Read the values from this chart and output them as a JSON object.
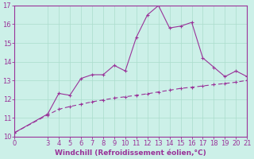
{
  "xlabel": "Windchill (Refroidissement éolien,°C)",
  "x_data": [
    0,
    3,
    4,
    5,
    6,
    7,
    8,
    9,
    10,
    11,
    12,
    13,
    14,
    15,
    16,
    17,
    18,
    19,
    20,
    21
  ],
  "line1_y": [
    10.2,
    11.2,
    12.3,
    12.2,
    13.1,
    13.3,
    13.3,
    13.8,
    13.5,
    15.3,
    16.5,
    17.0,
    15.8,
    15.9,
    16.1,
    14.2,
    13.7,
    13.2,
    13.5,
    13.2
  ],
  "line2_y": [
    10.2,
    11.15,
    11.45,
    11.6,
    11.72,
    11.85,
    11.95,
    12.05,
    12.12,
    12.2,
    12.28,
    12.38,
    12.47,
    12.57,
    12.63,
    12.7,
    12.77,
    12.83,
    12.9,
    13.0
  ],
  "line_color": "#993399",
  "bg_color": "#ccf0e8",
  "grid_color": "#aaddcc",
  "axis_color": "#993399",
  "text_color": "#993399",
  "ylim": [
    10,
    17
  ],
  "xlim": [
    0,
    21
  ],
  "yticks": [
    10,
    11,
    12,
    13,
    14,
    15,
    16,
    17
  ],
  "xticks": [
    0,
    3,
    4,
    5,
    6,
    7,
    8,
    9,
    10,
    11,
    12,
    13,
    14,
    15,
    16,
    17,
    18,
    19,
    20,
    21
  ],
  "tick_fontsize": 6.0,
  "xlabel_fontsize": 6.5
}
